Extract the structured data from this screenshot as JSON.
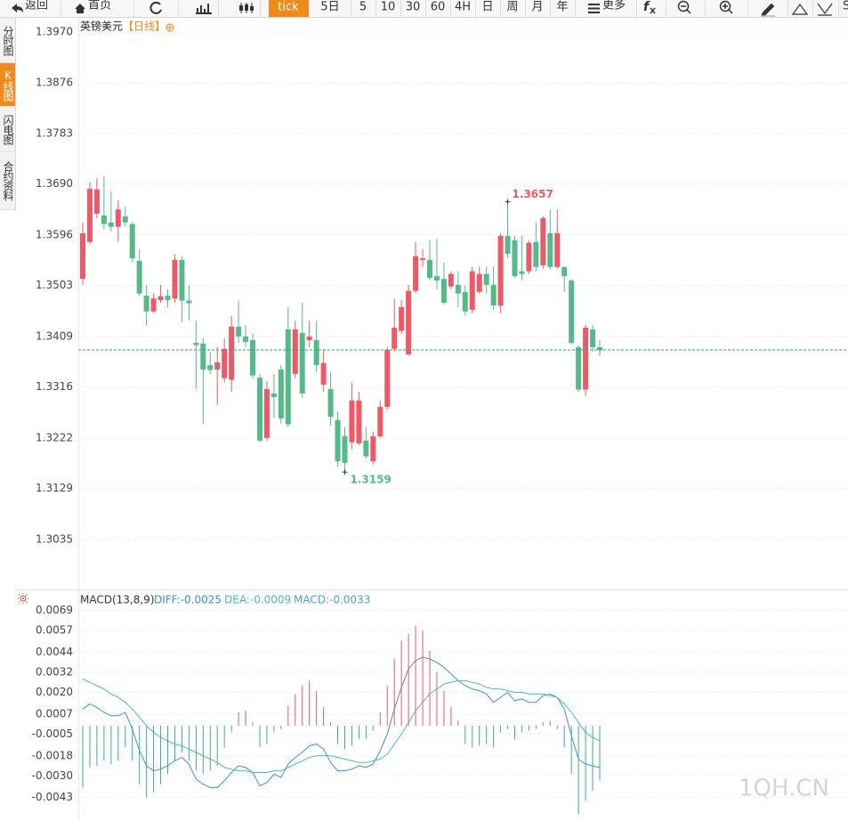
{
  "toolbar": {
    "back": "返回",
    "home": "首页",
    "periods": [
      "tick",
      "5日",
      "5",
      "10",
      "30",
      "60",
      "4H",
      "日",
      "周",
      "月",
      "年"
    ],
    "more": "更多"
  },
  "sidebar": {
    "tabs": [
      "分时图",
      "K线图",
      "闪电图",
      "合约资料"
    ]
  },
  "watermark": "1QH.CN",
  "chart_data": [
    {
      "type": "candlestick",
      "title": "英镑美元",
      "subtitle": "【日线】",
      "title_color": "#222222",
      "subtitle_color": "#f08a1c",
      "up_color": "#ec5a69",
      "down_color": "#56b98a",
      "last_line_color": "#2e9e9a",
      "grid": true,
      "ylim": [
        1.2946,
        1.3996
      ],
      "yticks": [
        {
          "value": 1.397,
          "label": "1.3970"
        },
        1.3876,
        1.3783,
        {
          "value": 1.369,
          "label": "1.3690"
        },
        1.3596,
        1.3503,
        1.3409,
        1.3316,
        1.3222,
        1.3129,
        1.3035
      ],
      "open": [
        1.3515,
        1.3583,
        1.3635,
        1.3632,
        1.3619,
        1.3611,
        1.363,
        1.3616,
        1.3548,
        1.3484,
        1.3455,
        1.3476,
        1.3484,
        1.3479,
        1.355,
        1.3475,
        1.3397,
        1.3396,
        1.3356,
        1.3348,
        1.3332,
        1.3329,
        1.3427,
        1.3409,
        1.3402,
        1.3333,
        1.3222,
        1.3304,
        1.3348,
        1.3422,
        1.334,
        1.3415,
        1.3402,
        1.3402,
        1.332,
        1.3312,
        1.3255,
        1.3225,
        1.3214,
        1.3212,
        1.3217,
        1.3179,
        1.3225,
        1.3279,
        1.3386,
        1.3419,
        1.3376,
        1.3493,
        1.355,
        1.355,
        1.352,
        1.3515,
        1.3501,
        1.3504,
        1.3491,
        1.3458,
        1.3491,
        1.3524,
        1.3504,
        1.3466,
        1.3594,
        1.3586,
        1.3529,
        1.3529,
        1.3583,
        1.354,
        1.3599,
        1.3537,
        1.3537,
        1.3512,
        1.3389,
        1.3311,
        1.3422,
        1.3389
      ],
      "high": [
        1.3619,
        1.3693,
        1.3701,
        1.3704,
        1.3676,
        1.366,
        1.3648,
        1.3619,
        1.357,
        1.3504,
        1.3488,
        1.3504,
        1.3496,
        1.3561,
        1.3557,
        1.3504,
        1.3438,
        1.3406,
        1.3381,
        1.3389,
        1.3406,
        1.3447,
        1.3475,
        1.343,
        1.3414,
        1.334,
        1.3327,
        1.334,
        1.3356,
        1.3463,
        1.3438,
        1.3471,
        1.3438,
        1.3438,
        1.3386,
        1.3343,
        1.3271,
        1.3242,
        1.3324,
        1.3307,
        1.3242,
        1.3233,
        1.3291,
        1.3389,
        1.3478,
        1.3476,
        1.3504,
        1.3583,
        1.357,
        1.3586,
        1.3589,
        1.3545,
        1.3529,
        1.3529,
        1.3504,
        1.3537,
        1.3537,
        1.3537,
        1.3537,
        1.3599,
        1.3657,
        1.3594,
        1.3594,
        1.3586,
        1.3619,
        1.363,
        1.3643,
        1.3643,
        1.3537,
        1.3515,
        1.3393,
        1.343,
        1.343,
        1.3402
      ],
      "low": [
        1.3504,
        1.3578,
        1.3627,
        1.3606,
        1.3602,
        1.3583,
        1.3611,
        1.3545,
        1.3484,
        1.343,
        1.3452,
        1.3471,
        1.3463,
        1.3471,
        1.3435,
        1.3438,
        1.3312,
        1.3248,
        1.334,
        1.3283,
        1.3324,
        1.3307,
        1.3397,
        1.3389,
        1.3332,
        1.3214,
        1.3217,
        1.3258,
        1.3248,
        1.3242,
        1.3332,
        1.3296,
        1.3389,
        1.3343,
        1.3307,
        1.3245,
        1.3169,
        1.3159,
        1.3201,
        1.3209,
        1.3184,
        1.3173,
        1.3222,
        1.3274,
        1.3381,
        1.3414,
        1.3373,
        1.3488,
        1.3537,
        1.3512,
        1.3496,
        1.3468,
        1.3496,
        1.3463,
        1.3447,
        1.3452,
        1.3488,
        1.3488,
        1.3458,
        1.3452,
        1.3553,
        1.3517,
        1.3512,
        1.3524,
        1.3529,
        1.3534,
        1.3532,
        1.3534,
        1.3491,
        1.3394,
        1.3307,
        1.3299,
        1.3381,
        1.3373
      ],
      "close": [
        1.3599,
        1.3681,
        1.368,
        1.3616,
        1.3611,
        1.3643,
        1.3619,
        1.3553,
        1.3488,
        1.3455,
        1.3479,
        1.3483,
        1.3476,
        1.355,
        1.3475,
        1.347,
        1.3393,
        1.3348,
        1.3347,
        1.3361,
        1.3386,
        1.3427,
        1.3409,
        1.3399,
        1.3337,
        1.3217,
        1.3312,
        1.3297,
        1.3258,
        1.3247,
        1.3422,
        1.3304,
        1.3409,
        1.3356,
        1.336,
        1.3261,
        1.3179,
        1.3176,
        1.3291,
        1.3291,
        1.3188,
        1.3225,
        1.3279,
        1.3384,
        1.3425,
        1.3463,
        1.3493,
        1.3557,
        1.3553,
        1.3517,
        1.3512,
        1.3471,
        1.3524,
        1.3488,
        1.3455,
        1.3529,
        1.3524,
        1.3504,
        1.3466,
        1.3594,
        1.3561,
        1.352,
        1.3524,
        1.3581,
        1.3537,
        1.3627,
        1.3537,
        1.3599,
        1.352,
        1.3397,
        1.3311,
        1.3425,
        1.3389,
        1.3384
      ]
    },
    {
      "type": "macd",
      "title": "MACD(13,8,9)",
      "grid": true,
      "ylim": [
        -0.0056,
        0.008
      ],
      "yticks": [
        0.0069,
        0.0057,
        0.0044,
        0.0032,
        {
          "value": 0.002,
          "label": "0.0020"
        },
        0.0007,
        -0.0005,
        -0.0018,
        {
          "value": -0.003,
          "label": "-0.0030"
        },
        -0.0043
      ],
      "series": [
        {
          "name": "DIFF:-0.0025",
          "color": "#3a8ee6",
          "values": [
            0.001,
            0.0013,
            0.0011,
            0.0008,
            0.0006,
            0.0006,
            0.0008,
            -0.0002,
            -0.0015,
            -0.0024,
            -0.0027,
            -0.0026,
            -0.0024,
            -0.0021,
            -0.0019,
            -0.0023,
            -0.0032,
            -0.0035,
            -0.0037,
            -0.0037,
            -0.0033,
            -0.0028,
            -0.0024,
            -0.0025,
            -0.0028,
            -0.0036,
            -0.0034,
            -0.0029,
            -0.0031,
            -0.0023,
            -0.0019,
            -0.0016,
            -0.0012,
            -0.0011,
            -0.0014,
            -0.0022,
            -0.0027,
            -0.0027,
            -0.0026,
            -0.0024,
            -0.0025,
            -0.0023,
            -0.0015,
            -0.0005,
            0.001,
            0.0023,
            0.0034,
            0.0039,
            0.0041,
            0.004,
            0.0038,
            0.0035,
            0.0031,
            0.0027,
            0.0024,
            0.0022,
            0.0021,
            0.0019,
            0.0014,
            0.0017,
            0.002,
            0.0015,
            0.0016,
            0.0014,
            0.0014,
            0.0018,
            0.0019,
            0.0017,
            0.001,
            -0.0006,
            -0.002,
            -0.0023,
            -0.0024,
            -0.0025
          ]
        },
        {
          "name": "DEA:-0.0009",
          "color": "#4bc29b",
          "values": [
            0.0028,
            0.0026,
            0.0024,
            0.0022,
            0.0019,
            0.0017,
            0.0014,
            0.001,
            0.0005,
            0,
            -0.0004,
            -0.0007,
            -0.0009,
            -0.0011,
            -0.0012,
            -0.0014,
            -0.0016,
            -0.0018,
            -0.002,
            -0.0022,
            -0.0025,
            -0.0026,
            -0.0027,
            -0.0027,
            -0.0028,
            -0.0028,
            -0.0028,
            -0.0027,
            -0.0027,
            -0.0025,
            -0.0023,
            -0.0021,
            -0.0019,
            -0.0018,
            -0.0018,
            -0.0018,
            -0.0019,
            -0.002,
            -0.0021,
            -0.0022,
            -0.0022,
            -0.0021,
            -0.002,
            -0.0017,
            -0.0011,
            -0.0005,
            0.0002,
            0.0009,
            0.0014,
            0.0019,
            0.0022,
            0.0025,
            0.0026,
            0.0027,
            0.0027,
            0.0026,
            0.0025,
            0.0023,
            0.0022,
            0.0022,
            0.0021,
            0.002,
            0.002,
            0.0019,
            0.0019,
            0.0019,
            0.0018,
            0.0017,
            0.0013,
            0.0008,
            0.0002,
            -0.0004,
            -0.0007,
            -0.0009
          ]
        },
        {
          "name": "MACD:-0.0033",
          "type": "bar",
          "color": "#4aa4c8",
          "up_color": "#e05c6a",
          "down_color": "#3fae85",
          "values": [
            -0.0037,
            -0.0025,
            -0.0024,
            -0.0021,
            -0.0023,
            -0.0021,
            -0.0013,
            -0.0021,
            -0.0035,
            -0.0043,
            -0.004,
            -0.0035,
            -0.0029,
            -0.0021,
            -0.0016,
            -0.0021,
            -0.0027,
            -0.0029,
            -0.0027,
            -0.0024,
            -0.0013,
            -0.0004,
            0.0008,
            0.0009,
            0.0002,
            -0.0013,
            -0.0011,
            -0.0004,
            -0.0002,
            0.0012,
            0.0019,
            0.0024,
            0.0027,
            0.0021,
            0.0011,
            0.0002,
            -0.0011,
            -0.0014,
            -0.0012,
            -0.0008,
            -0.0008,
            -0.0003,
            0.0008,
            0.0024,
            0.004,
            0.0051,
            0.0055,
            0.006,
            0.0057,
            0.0045,
            0.0032,
            0.0021,
            0.0011,
            0.0003,
            -0.0011,
            -0.0013,
            -0.0012,
            -0.0011,
            -0.0013,
            -0.0004,
            -0.0002,
            -0.0008,
            -0.0004,
            -0.0003,
            -0.0002,
            0.0002,
            0.0003,
            -0.0002,
            -0.0013,
            -0.0029,
            -0.0053,
            -0.0045,
            -0.0039,
            -0.0033
          ]
        }
      ]
    }
  ]
}
